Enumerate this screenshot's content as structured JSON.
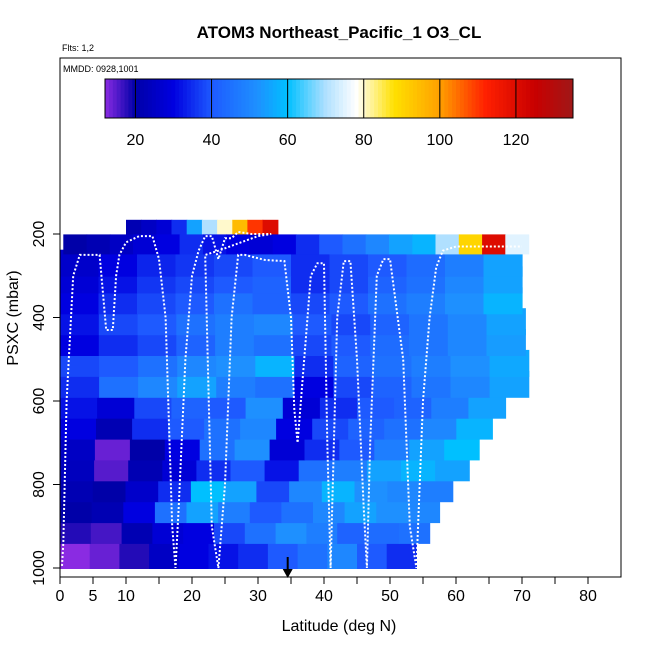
{
  "chart_data": {
    "type": "heatmap",
    "title": "ATOM3 Northeast_Pacific_1 O3_CL",
    "notes": [
      "Flts: 1,2",
      "MMDD: 0928,1001"
    ],
    "xlabel": "Latitude (deg N)",
    "ylabel": "PSXC (mbar)",
    "xlim": [
      0,
      85
    ],
    "ylim": [
      1000,
      100
    ],
    "y_reversed": true,
    "x_ticks": [
      0,
      5,
      10,
      20,
      30,
      40,
      50,
      60,
      70,
      80
    ],
    "x_minor_ticks": [
      15,
      25,
      35,
      45,
      55,
      65,
      75
    ],
    "y_ticks": [
      200,
      400,
      600,
      800,
      1000
    ],
    "colorbar": {
      "range": [
        12,
        135
      ],
      "ticks": [
        20,
        40,
        60,
        80,
        100,
        120
      ],
      "stops": [
        {
          "v": 12,
          "c": "#8a2be2"
        },
        {
          "v": 20,
          "c": "#0000a8"
        },
        {
          "v": 30,
          "c": "#0000e0"
        },
        {
          "v": 40,
          "c": "#1e5aff"
        },
        {
          "v": 52,
          "c": "#1e90ff"
        },
        {
          "v": 60,
          "c": "#00c0ff"
        },
        {
          "v": 70,
          "c": "#b0e0ff"
        },
        {
          "v": 78,
          "c": "#ffffff"
        },
        {
          "v": 88,
          "c": "#ffe000"
        },
        {
          "v": 100,
          "c": "#ffa000"
        },
        {
          "v": 112,
          "c": "#ff2000"
        },
        {
          "v": 125,
          "c": "#c80000"
        },
        {
          "v": 135,
          "c": "#a01818"
        }
      ]
    },
    "marker": {
      "lat": 34.5,
      "psxc": 1000,
      "symbol": "down-arrow"
    },
    "profile_row_pressures": [
      970,
      910,
      860,
      810,
      760,
      710,
      660,
      610,
      560,
      510,
      460,
      410,
      360,
      310,
      270
    ],
    "profile_row_extent_lat": [
      [
        0,
        54
      ],
      [
        0,
        56
      ],
      [
        0,
        57.5
      ],
      [
        0,
        59.5
      ],
      [
        0,
        62
      ],
      [
        0,
        63.5
      ],
      [
        0,
        65.5
      ],
      [
        0,
        67.5
      ],
      [
        0,
        71
      ],
      [
        0,
        71
      ],
      [
        0,
        70.5
      ],
      [
        0,
        70.5
      ],
      [
        0,
        70
      ],
      [
        0,
        70
      ],
      [
        0,
        70
      ]
    ],
    "profile_row_values": [
      [
        12,
        14,
        18,
        25,
        30,
        32,
        35,
        40,
        45,
        50,
        40,
        35
      ],
      [
        18,
        16,
        22,
        28,
        30,
        38,
        45,
        52,
        48,
        42,
        44,
        45
      ],
      [
        20,
        22,
        30,
        45,
        55,
        48,
        40,
        45,
        50,
        55,
        52,
        50
      ],
      [
        22,
        20,
        26,
        35,
        60,
        55,
        38,
        50,
        58,
        52,
        50,
        48
      ],
      [
        24,
        15,
        22,
        28,
        35,
        40,
        32,
        45,
        48,
        55,
        58,
        55
      ],
      [
        25,
        14,
        20,
        30,
        45,
        52,
        28,
        35,
        40,
        48,
        55,
        60
      ],
      [
        30,
        22,
        35,
        40,
        45,
        50,
        30,
        38,
        42,
        45,
        50,
        58
      ],
      [
        32,
        28,
        38,
        42,
        40,
        52,
        28,
        35,
        40,
        42,
        48,
        55
      ],
      [
        35,
        45,
        50,
        55,
        48,
        45,
        30,
        38,
        42,
        46,
        50,
        55
      ],
      [
        38,
        40,
        45,
        50,
        52,
        58,
        35,
        42,
        45,
        48,
        52,
        56
      ],
      [
        30,
        35,
        38,
        42,
        48,
        45,
        38,
        40,
        44,
        46,
        50,
        54
      ],
      [
        32,
        38,
        40,
        45,
        48,
        50,
        40,
        38,
        42,
        46,
        50,
        55
      ],
      [
        30,
        35,
        38,
        40,
        45,
        42,
        38,
        40,
        45,
        48,
        52,
        58
      ],
      [
        28,
        32,
        36,
        38,
        40,
        42,
        35,
        38,
        42,
        45,
        50,
        55
      ],
      [
        26,
        30,
        34,
        36,
        38,
        40,
        35,
        38,
        40,
        44,
        48,
        55
      ]
    ],
    "top_strip": [
      {
        "psxc": 190,
        "lat": [
          10,
          33
        ],
        "values": [
          22,
          25,
          28,
          35,
          55,
          70,
          80,
          95,
          110,
          120
        ]
      },
      {
        "psxc": 225,
        "lat": [
          0.5,
          71
        ],
        "values": [
          20,
          22,
          25,
          28,
          30,
          35,
          32,
          30,
          28,
          30,
          35,
          40,
          45,
          50,
          55,
          58,
          70,
          90,
          120,
          75
        ]
      }
    ],
    "flight_track": [
      [
        0.3,
        995
      ],
      [
        0.5,
        940
      ],
      [
        1,
        600
      ],
      [
        2,
        300
      ],
      [
        3,
        250
      ],
      [
        6,
        250
      ],
      [
        7,
        430
      ],
      [
        8,
        430
      ],
      [
        8.5,
        300
      ],
      [
        9,
        250
      ],
      [
        10,
        220
      ],
      [
        12,
        205
      ],
      [
        14,
        205
      ],
      [
        15,
        260
      ],
      [
        16,
        400
      ],
      [
        16.5,
        650
      ],
      [
        17,
        900
      ],
      [
        17.5,
        1000
      ],
      [
        18,
        850
      ],
      [
        19,
        500
      ],
      [
        20,
        300
      ],
      [
        21,
        240
      ],
      [
        22,
        205
      ],
      [
        23,
        205
      ],
      [
        24,
        260
      ],
      [
        25,
        210
      ],
      [
        26,
        210
      ],
      [
        27,
        195
      ],
      [
        29,
        200
      ],
      [
        32,
        200
      ],
      [
        30,
        205
      ],
      [
        24,
        240
      ],
      [
        22,
        250
      ],
      [
        23,
        900
      ],
      [
        24,
        1000
      ],
      [
        25,
        800
      ],
      [
        26,
        400
      ],
      [
        27,
        250
      ],
      [
        28,
        250
      ],
      [
        31,
        262
      ],
      [
        34,
        265
      ],
      [
        35,
        400
      ],
      [
        35.5,
        620
      ],
      [
        36,
        700
      ],
      [
        37,
        500
      ],
      [
        38,
        300
      ],
      [
        39,
        270
      ],
      [
        40,
        270
      ],
      [
        40.5,
        700
      ],
      [
        41,
        1000
      ],
      [
        41.5,
        700
      ],
      [
        42,
        400
      ],
      [
        43,
        265
      ],
      [
        44,
        265
      ],
      [
        45,
        500
      ],
      [
        46,
        850
      ],
      [
        46.5,
        1000
      ],
      [
        47,
        700
      ],
      [
        48,
        300
      ],
      [
        49,
        260
      ],
      [
        50,
        260
      ],
      [
        52,
        500
      ],
      [
        53,
        900
      ],
      [
        54,
        1000
      ],
      [
        55,
        600
      ],
      [
        56,
        400
      ],
      [
        57,
        280
      ],
      [
        58,
        240
      ],
      [
        60,
        230
      ],
      [
        70,
        230
      ]
    ]
  }
}
